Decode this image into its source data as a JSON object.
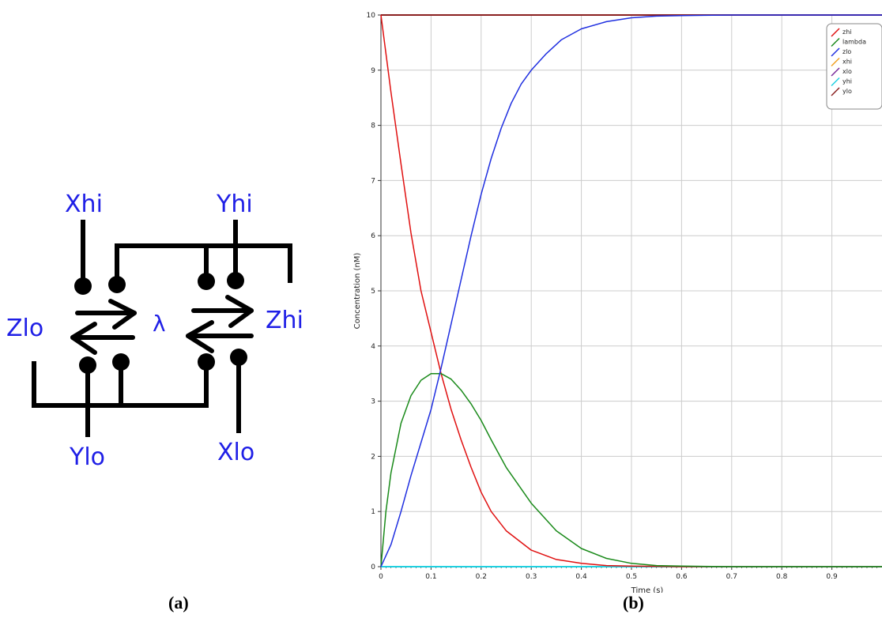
{
  "diagram": {
    "species": {
      "xhi": "Xhi",
      "yhi": "Yhi",
      "zlo": "Zlo",
      "zhi": "Zhi",
      "ylo": "Ylo",
      "xlo": "Xlo",
      "lambda": "λ"
    },
    "panel_label": "(a)"
  },
  "chart_panel_label": "(b)",
  "chart_data": {
    "type": "line",
    "xlabel": "Time (s)",
    "ylabel": "Concentration (nM)",
    "xlim": [
      0,
      1.0
    ],
    "ylim": [
      0,
      10
    ],
    "xticks": [
      0,
      0.1,
      0.2,
      0.3,
      0.4,
      0.5,
      0.6,
      0.7,
      0.8,
      0.9
    ],
    "yticks": [
      0,
      1,
      2,
      3,
      4,
      5,
      6,
      7,
      8,
      9,
      10
    ],
    "grid": true,
    "legend_position": "top-right",
    "series": [
      {
        "name": "zhi",
        "color": "#e01010",
        "x": [
          0,
          0.02,
          0.04,
          0.06,
          0.08,
          0.1,
          0.12,
          0.14,
          0.16,
          0.18,
          0.2,
          0.22,
          0.25,
          0.3,
          0.35,
          0.4,
          0.45,
          0.5,
          0.6,
          0.7,
          1.0
        ],
        "y": [
          10,
          8.6,
          7.3,
          6.05,
          5.0,
          4.25,
          3.5,
          2.85,
          2.3,
          1.8,
          1.35,
          1.0,
          0.65,
          0.3,
          0.13,
          0.06,
          0.02,
          0.01,
          0,
          0,
          0
        ]
      },
      {
        "name": "lambda",
        "color": "#1a8a1a",
        "x": [
          0,
          0.01,
          0.02,
          0.04,
          0.06,
          0.08,
          0.1,
          0.12,
          0.14,
          0.16,
          0.18,
          0.2,
          0.22,
          0.25,
          0.3,
          0.35,
          0.4,
          0.45,
          0.5,
          0.55,
          0.6,
          0.7,
          1.0
        ],
        "y": [
          0,
          1.0,
          1.7,
          2.6,
          3.1,
          3.38,
          3.5,
          3.5,
          3.4,
          3.2,
          2.95,
          2.65,
          2.3,
          1.8,
          1.15,
          0.65,
          0.33,
          0.15,
          0.06,
          0.02,
          0.01,
          0,
          0
        ]
      },
      {
        "name": "zlo",
        "color": "#1f2fe0",
        "x": [
          0,
          0.02,
          0.04,
          0.06,
          0.08,
          0.1,
          0.12,
          0.14,
          0.16,
          0.18,
          0.2,
          0.22,
          0.24,
          0.26,
          0.28,
          0.3,
          0.33,
          0.36,
          0.4,
          0.45,
          0.5,
          0.55,
          0.6,
          0.7,
          1.0
        ],
        "y": [
          0,
          0.4,
          1.0,
          1.65,
          2.25,
          2.85,
          3.6,
          4.4,
          5.2,
          6.0,
          6.75,
          7.4,
          7.95,
          8.4,
          8.75,
          9.0,
          9.3,
          9.55,
          9.75,
          9.88,
          9.95,
          9.98,
          9.99,
          10,
          10
        ]
      },
      {
        "name": "xhi",
        "color": "#f0a020",
        "x": [
          0,
          1.0
        ],
        "y": [
          10,
          10
        ]
      },
      {
        "name": "xlo",
        "color": "#7a2a9a",
        "x": [
          0,
          1.0
        ],
        "y": [
          0,
          0
        ]
      },
      {
        "name": "yhi",
        "color": "#20d0e0",
        "x": [
          0,
          1.0
        ],
        "y": [
          0,
          0
        ]
      },
      {
        "name": "ylo",
        "color": "#8a2020",
        "x": [
          0,
          1.0
        ],
        "y": [
          10,
          10
        ]
      }
    ]
  }
}
